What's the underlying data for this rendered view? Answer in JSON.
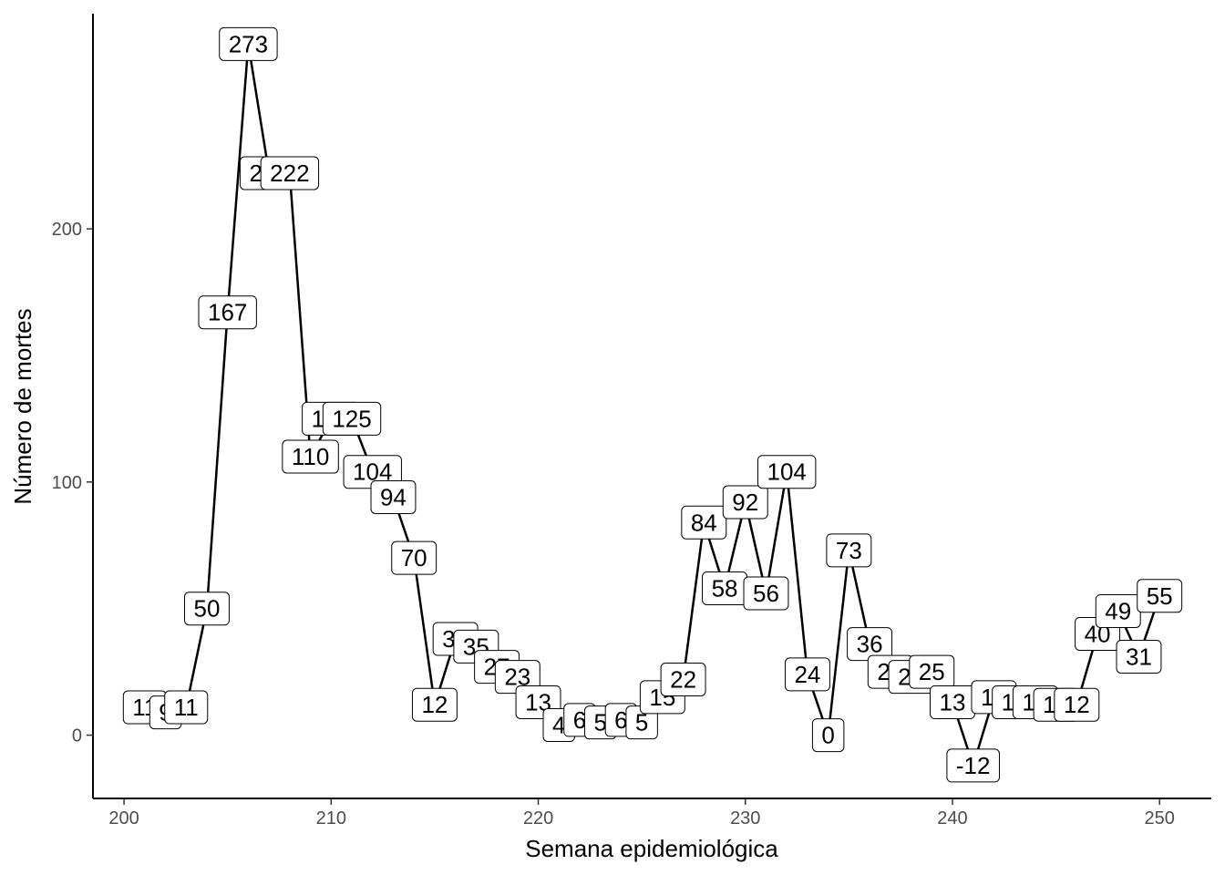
{
  "chart_data": {
    "type": "line",
    "xlabel": "Semana epidemiológica",
    "ylabel": "Número de mortes",
    "xlim": [
      198.5,
      252.5
    ],
    "ylim": [
      -25,
      285
    ],
    "x_ticks": [
      200,
      210,
      220,
      230,
      240,
      250
    ],
    "y_ticks": [
      0,
      100,
      200
    ],
    "grid": false,
    "series": [
      {
        "x": [
          201,
          202,
          203,
          204,
          205,
          206,
          207,
          208,
          209,
          210,
          211,
          212,
          213,
          214,
          215,
          216,
          217,
          218,
          219,
          220,
          221,
          222,
          223,
          224,
          225,
          226,
          227,
          228,
          229,
          230,
          231,
          232,
          233,
          234,
          235,
          236,
          237,
          238,
          239,
          240,
          241,
          242,
          243,
          244,
          245,
          246,
          247,
          248,
          249,
          250
        ],
        "values": [
          11,
          9,
          11,
          50,
          167,
          273,
          222,
          222,
          110,
          125,
          125,
          104,
          94,
          70,
          12,
          38,
          35,
          27,
          23,
          13,
          4,
          6,
          5,
          6,
          5,
          15,
          22,
          84,
          58,
          92,
          56,
          104,
          24,
          0,
          73,
          36,
          25,
          23,
          25,
          13,
          -12,
          15,
          13,
          13,
          12,
          12,
          40,
          49,
          31,
          55
        ]
      }
    ],
    "labels": [
      "11",
      "9",
      "11",
      "50",
      "167",
      "273",
      "222",
      "222",
      "110",
      "125",
      "125",
      "104",
      "94",
      "70",
      "12",
      "38",
      "35",
      "27",
      "23",
      "13",
      "4",
      "6",
      "5",
      "6",
      "5",
      "15",
      "22",
      "84",
      "58",
      "92",
      "56",
      "104",
      "24",
      "0",
      "73",
      "36",
      "25",
      "23",
      "25",
      "13",
      "-12",
      "15",
      "13",
      "13",
      "12",
      "12",
      "40",
      "49",
      "31",
      "55"
    ]
  }
}
